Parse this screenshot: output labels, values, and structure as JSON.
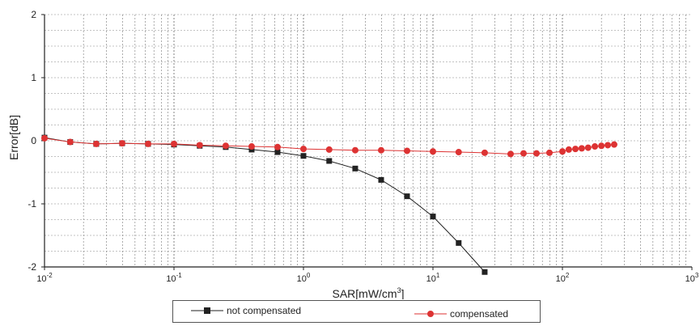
{
  "chart_data": {
    "type": "line",
    "title": "",
    "xlabel": "SAR[mW/cm",
    "xlabel_sup": "3",
    "xlabel_end": "]",
    "ylabel": "Error[dB]",
    "xscale": "log",
    "xlim": [
      0.01,
      1000
    ],
    "ylim": [
      -2,
      2
    ],
    "grid": true,
    "x_ticks": [
      {
        "value": 0.01,
        "base": "10",
        "exp": "-2"
      },
      {
        "value": 0.1,
        "base": "10",
        "exp": "-1"
      },
      {
        "value": 1,
        "base": "10",
        "exp": "0"
      },
      {
        "value": 10,
        "base": "10",
        "exp": "1"
      },
      {
        "value": 100,
        "base": "10",
        "exp": "2"
      },
      {
        "value": 1000,
        "base": "10",
        "exp": "3"
      }
    ],
    "y_ticks": [
      2,
      1,
      0,
      -1,
      -2
    ],
    "legend_position": "bottom",
    "series": [
      {
        "name": "not compensated",
        "color": "#222222",
        "marker": "square",
        "x": [
          0.01,
          0.0158,
          0.0251,
          0.0398,
          0.0631,
          0.1,
          0.158,
          0.251,
          0.398,
          0.631,
          1.0,
          1.58,
          2.51,
          3.98,
          6.31,
          10.0,
          15.8,
          25.1
        ],
        "y": [
          0.05,
          -0.02,
          -0.05,
          -0.04,
          -0.05,
          -0.06,
          -0.08,
          -0.1,
          -0.14,
          -0.18,
          -0.24,
          -0.32,
          -0.44,
          -0.62,
          -0.88,
          -1.2,
          -1.62,
          -2.08
        ]
      },
      {
        "name": "compensated",
        "color": "#dd3333",
        "marker": "circle",
        "x": [
          0.01,
          0.0158,
          0.0251,
          0.0398,
          0.0631,
          0.1,
          0.158,
          0.251,
          0.398,
          0.631,
          1.0,
          1.58,
          2.51,
          3.98,
          6.31,
          10.0,
          15.8,
          25.1,
          39.8,
          50.1,
          63.1,
          79.4,
          100,
          112,
          126,
          141,
          158,
          178,
          200,
          224,
          251
        ],
        "y": [
          0.04,
          -0.02,
          -0.05,
          -0.04,
          -0.05,
          -0.05,
          -0.07,
          -0.08,
          -0.09,
          -0.1,
          -0.13,
          -0.14,
          -0.15,
          -0.15,
          -0.16,
          -0.17,
          -0.18,
          -0.19,
          -0.21,
          -0.2,
          -0.2,
          -0.19,
          -0.17,
          -0.14,
          -0.13,
          -0.12,
          -0.11,
          -0.09,
          -0.08,
          -0.07,
          -0.06
        ]
      }
    ]
  }
}
